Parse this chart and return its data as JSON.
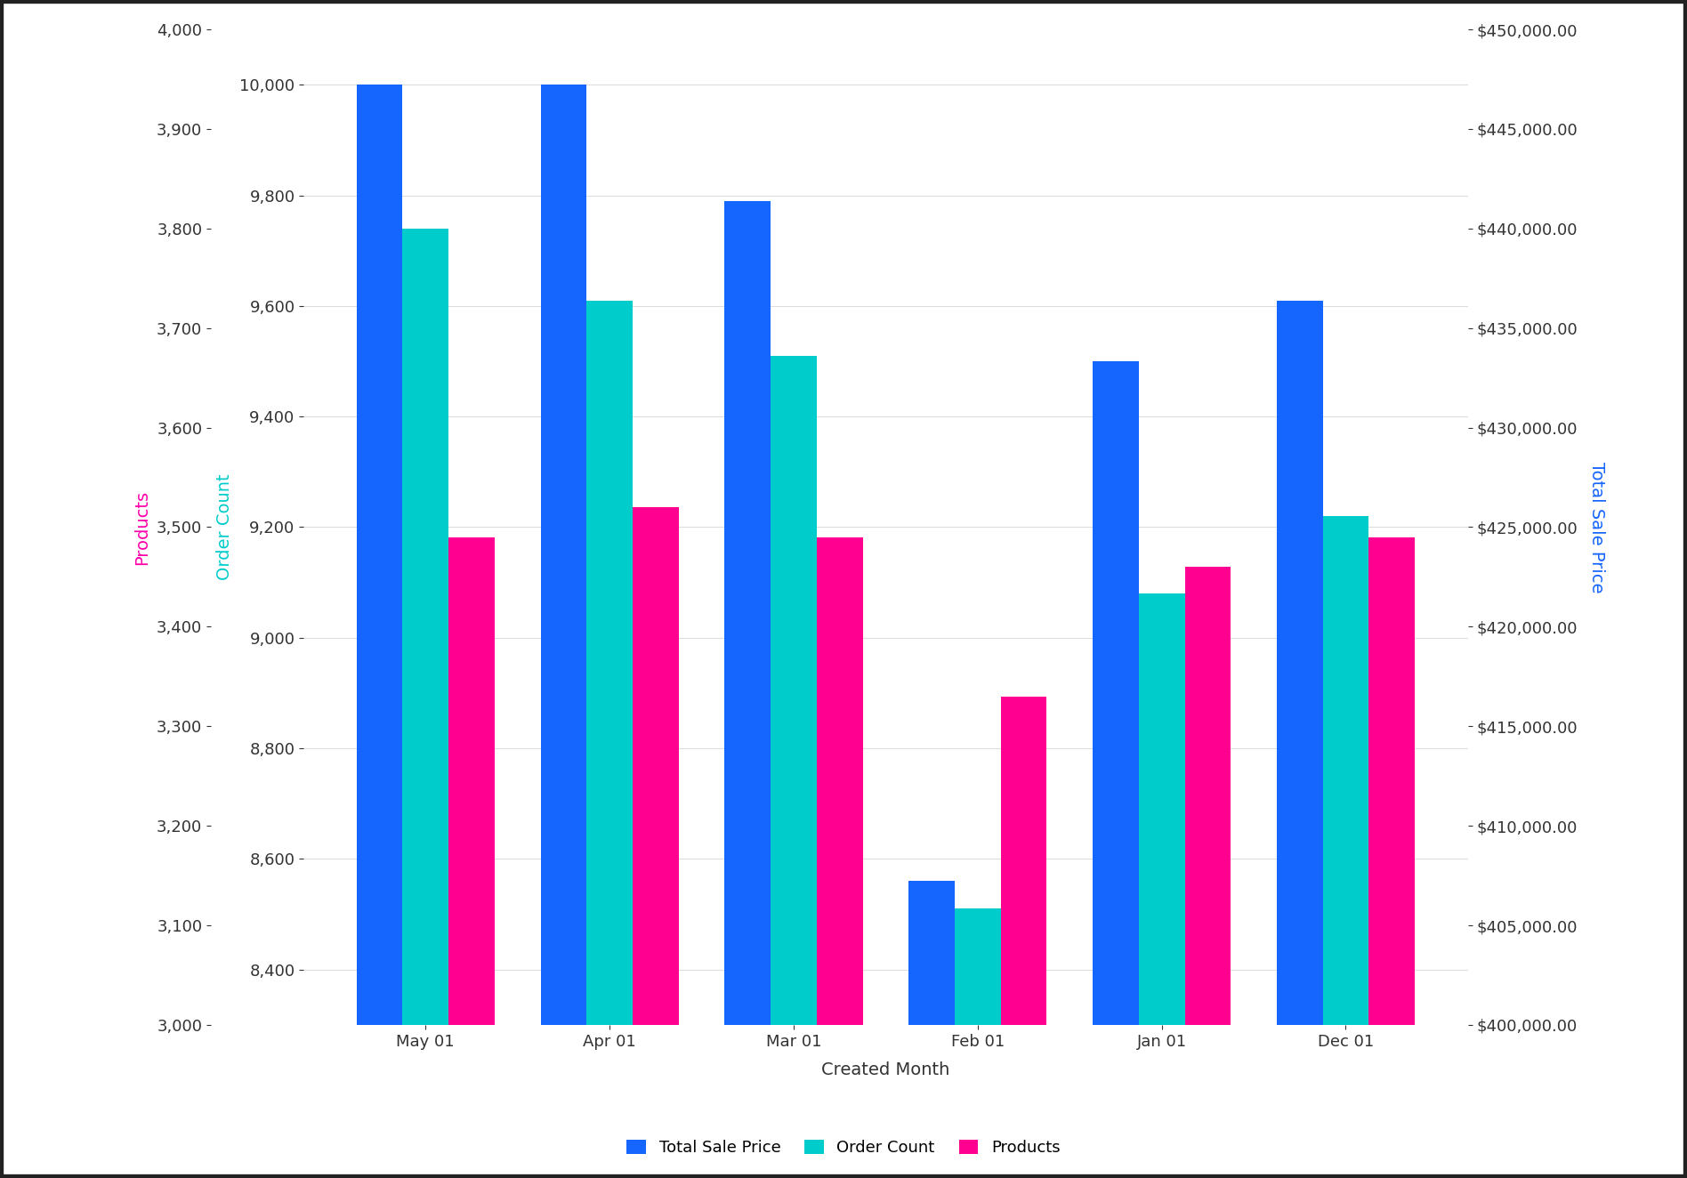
{
  "categories": [
    "May 01",
    "Apr 01",
    "Mar 01",
    "Feb 01",
    "Jan 01",
    "Dec 01"
  ],
  "total_sale_price_oc": [
    10000,
    10000,
    9790,
    8560,
    9500,
    9610
  ],
  "order_count": [
    9740,
    9610,
    9510,
    8510,
    9080,
    9220
  ],
  "products_raw": [
    3490,
    3520,
    3490,
    3330,
    3460,
    3490
  ],
  "bar_color_blue": "#1565FF",
  "bar_color_cyan": "#00CCCC",
  "bar_color_pink": "#FF0090",
  "background_color": "#FFFFFF",
  "grid_color": "#DDDDDD",
  "xlabel": "Created Month",
  "ylabel_order": "Order Count",
  "ylabel_products": "Products",
  "ylabel_right": "Total Sale Price",
  "ylabel_products_color": "#FF00AA",
  "ylabel_order_color": "#00CCCC",
  "ylabel_right_color": "#1565FF",
  "legend_labels": [
    "Total Sale Price",
    "Order Count",
    "Products"
  ],
  "oc_ylim": [
    8300,
    10100
  ],
  "products_ylim": [
    3000,
    4000
  ],
  "sp_ylim": [
    400000,
    450000
  ],
  "oc_yticks": [
    8400,
    8600,
    8800,
    9000,
    9200,
    9400,
    9600,
    9800,
    10000
  ],
  "products_yticks": [
    3000,
    3100,
    3200,
    3300,
    3400,
    3500,
    3600,
    3700,
    3800,
    3900,
    4000
  ],
  "sp_yticks": [
    400000,
    405000,
    410000,
    415000,
    420000,
    425000,
    430000,
    435000,
    440000,
    445000,
    450000
  ],
  "border_color": "#222222",
  "tick_fontsize": 13,
  "label_fontsize": 14,
  "bar_width": 0.25
}
